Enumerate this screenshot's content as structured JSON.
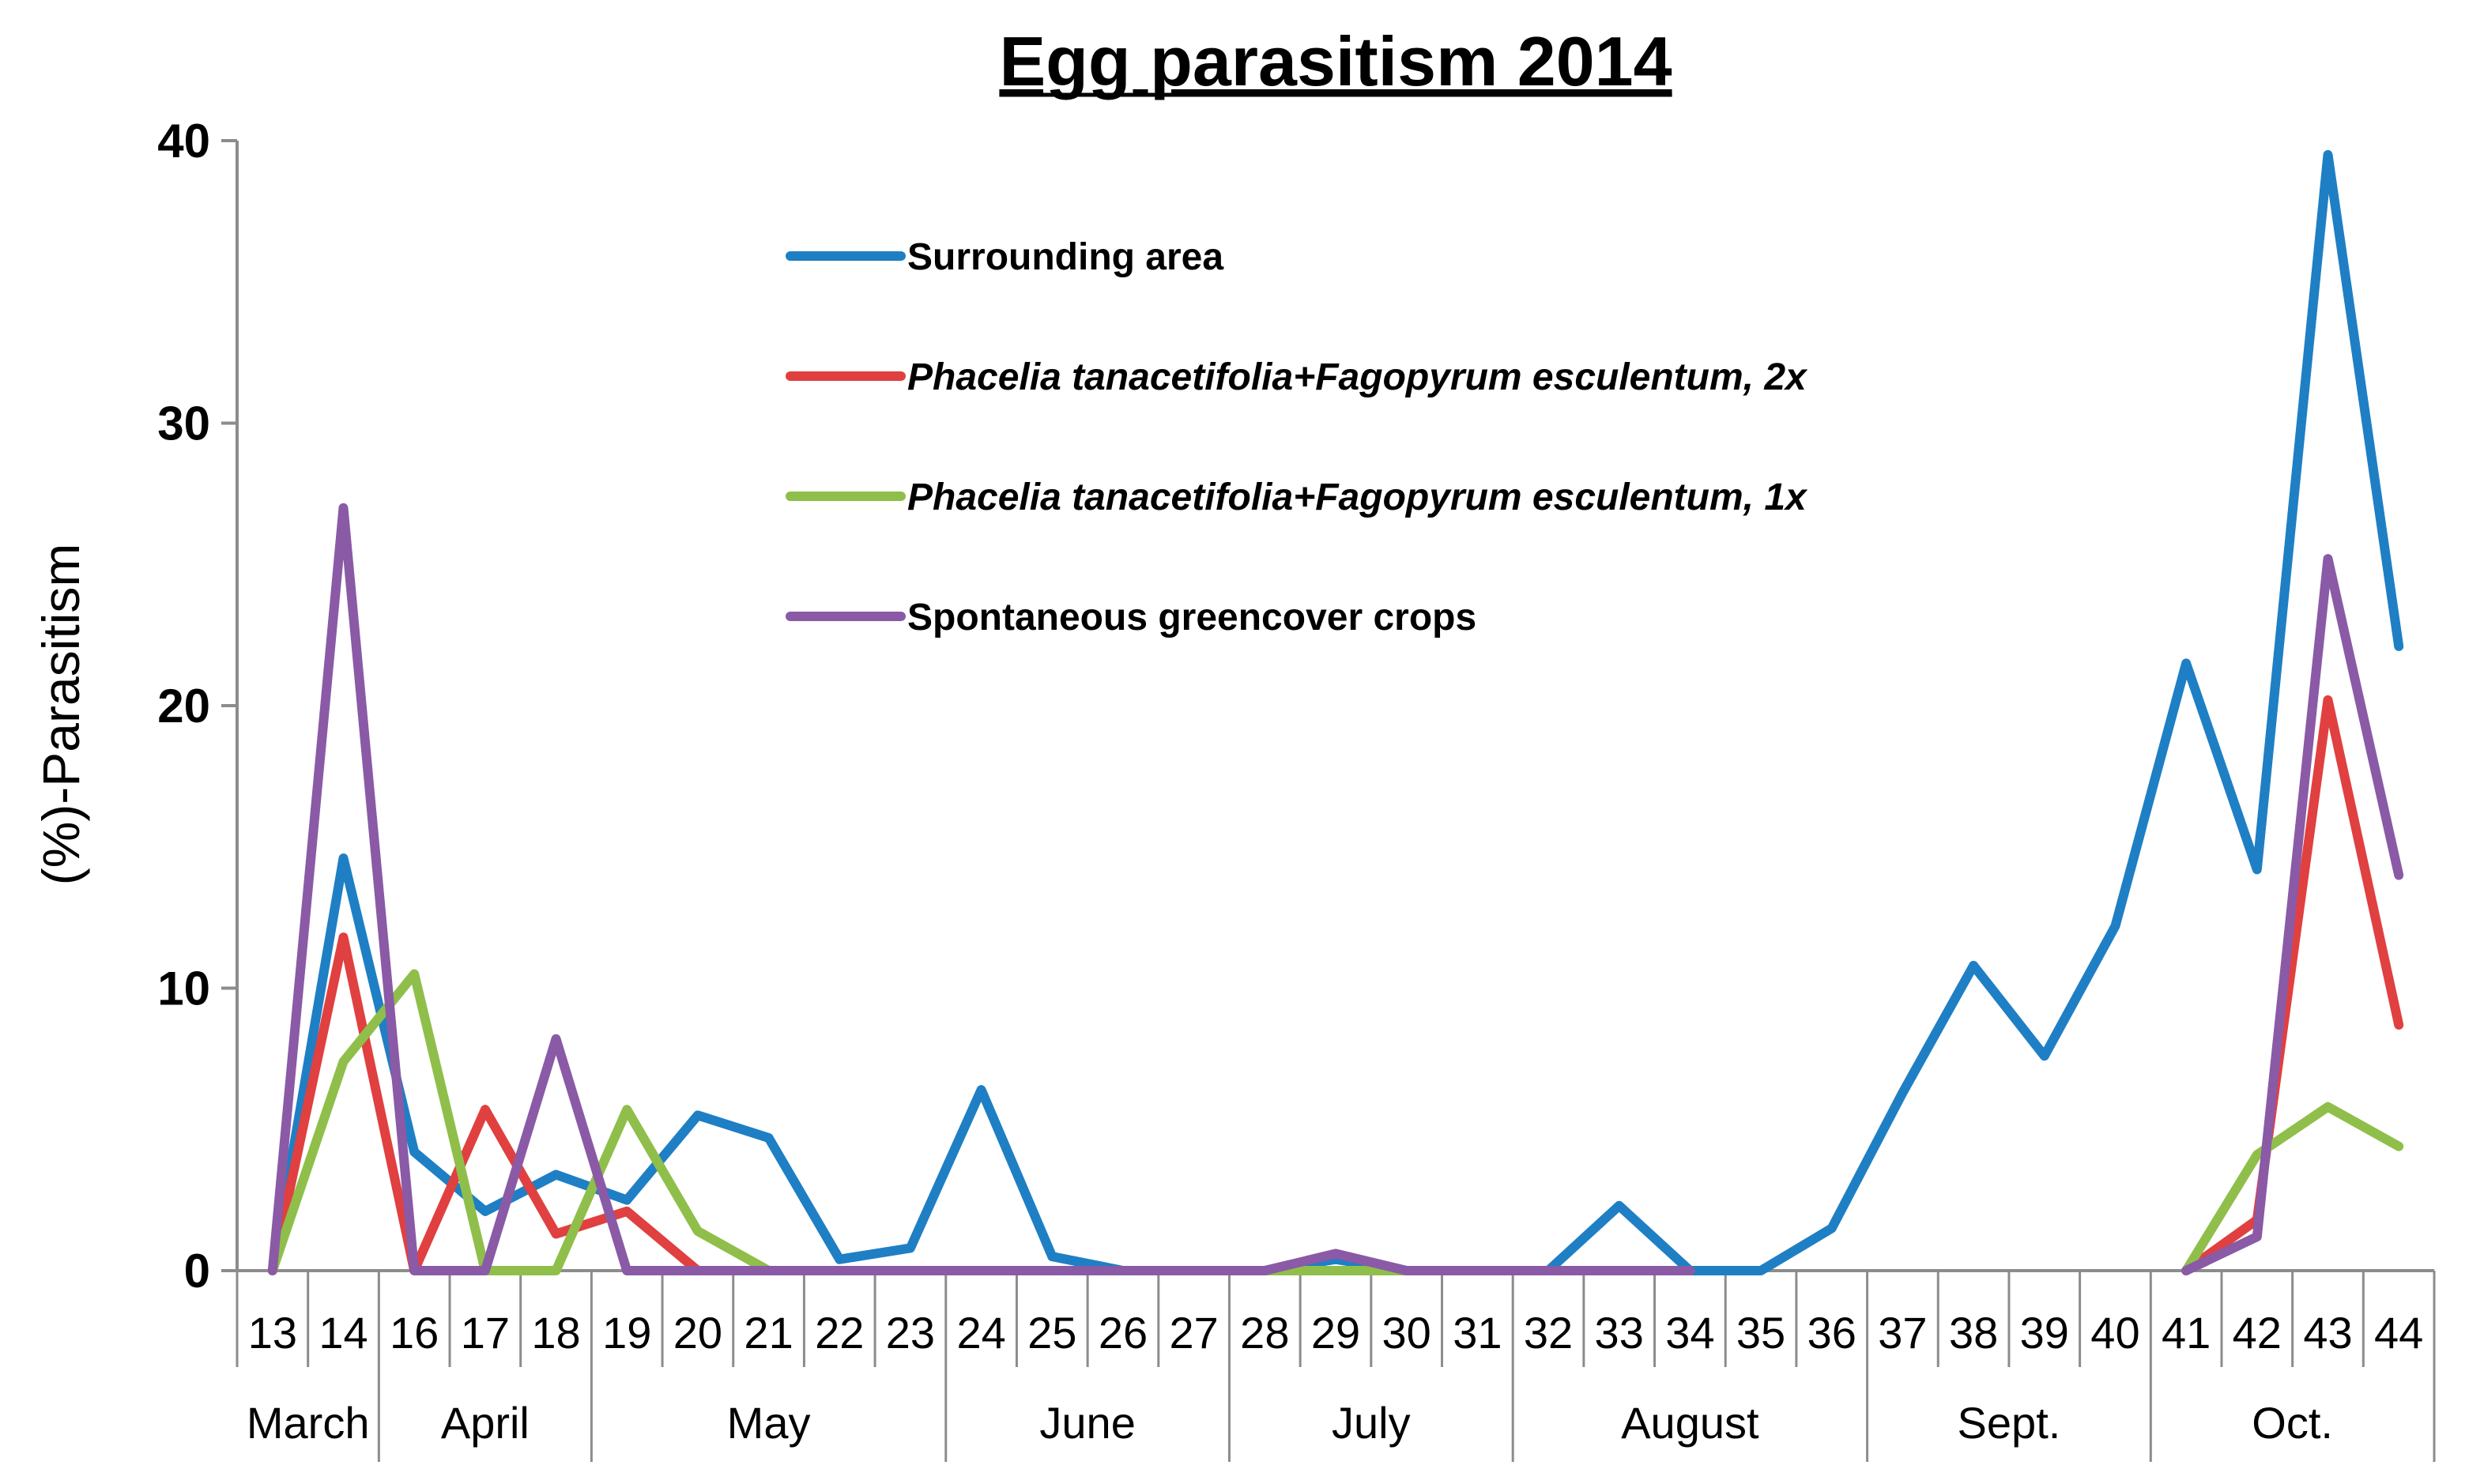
{
  "chart_data": {
    "type": "line",
    "title": "Egg parasitism  2014",
    "ylabel": "(%)-Parasitism",
    "xlabel": "",
    "ylim": [
      0,
      40
    ],
    "yticks": [
      "0",
      "10",
      "20",
      "30",
      "40"
    ],
    "ytick_values": [
      0,
      10,
      20,
      30,
      40
    ],
    "categories": [
      "13",
      "14",
      "16",
      "17",
      "18",
      "19",
      "20",
      "21",
      "22",
      "23",
      "24",
      "25",
      "26",
      "27",
      "28",
      "29",
      "30",
      "31",
      "32",
      "33",
      "34",
      "35",
      "36",
      "37",
      "38",
      "39",
      "40",
      "41",
      "42",
      "43",
      "44"
    ],
    "months": [
      {
        "label": "March",
        "start": 0,
        "end": 1
      },
      {
        "label": "April",
        "start": 2,
        "end": 4
      },
      {
        "label": "May",
        "start": 5,
        "end": 9
      },
      {
        "label": "June",
        "start": 10,
        "end": 13
      },
      {
        "label": "July",
        "start": 14,
        "end": 17
      },
      {
        "label": "August",
        "start": 18,
        "end": 22
      },
      {
        "label": "Sept.",
        "start": 23,
        "end": 26
      },
      {
        "label": "Oct.",
        "start": 27,
        "end": 30
      }
    ],
    "legend_position": "top-center",
    "grid": false,
    "series": [
      {
        "name": "Surrounding area",
        "color": "#1f7fc4",
        "italic": false,
        "values": [
          0,
          14.6,
          4.2,
          2.1,
          3.4,
          2.5,
          5.5,
          4.7,
          0.4,
          0.8,
          6.4,
          0.5,
          0,
          0,
          0,
          0.4,
          0,
          0,
          0,
          2.3,
          0,
          0,
          1.5,
          6.3,
          10.8,
          7.6,
          12.2,
          21.5,
          14.2,
          39.5,
          22.1
        ]
      },
      {
        "name": "Phacelia tanacetifolia+Fagopyrum  esculentum, 2x",
        "color": "#e04040",
        "italic": true,
        "values": [
          0,
          11.8,
          0,
          5.7,
          1.3,
          2.1,
          0,
          0,
          0,
          0,
          0,
          0,
          0,
          0,
          0,
          0,
          0,
          0,
          0,
          0,
          0,
          null,
          null,
          null,
          null,
          null,
          null,
          0,
          1.8,
          20.2,
          8.7
        ]
      },
      {
        "name": "Phacelia tanacetifolia+Fagopyrum  esculentum, 1x",
        "color": "#8fbf4a",
        "italic": true,
        "values": [
          0,
          7.4,
          10.5,
          0,
          0,
          5.7,
          1.4,
          0,
          0,
          0,
          0,
          0,
          0,
          0,
          0,
          0,
          0,
          0,
          0,
          0,
          0,
          null,
          null,
          null,
          null,
          null,
          null,
          0,
          4.1,
          5.8,
          4.4
        ]
      },
      {
        "name": "Spontaneous  greencover crops",
        "color": "#8a5aa6",
        "italic": false,
        "values": [
          0,
          27,
          0,
          0,
          8.2,
          0,
          0,
          0,
          0,
          0,
          0,
          0,
          0,
          0,
          0,
          0.6,
          0,
          0,
          0,
          0,
          0,
          null,
          null,
          null,
          null,
          null,
          null,
          0,
          1.2,
          25.2,
          14.0
        ]
      }
    ]
  }
}
